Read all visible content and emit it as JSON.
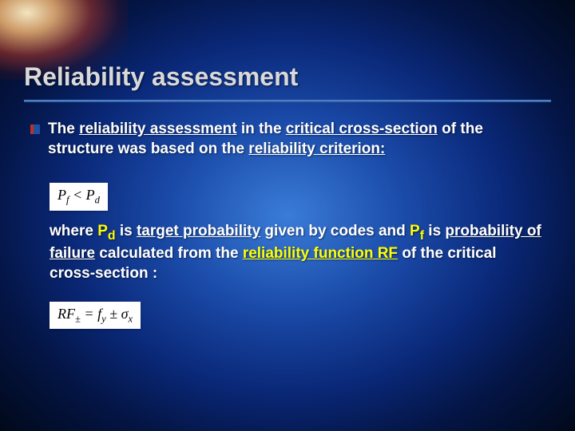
{
  "title": "Reliability assessment",
  "para1": {
    "pre": "The ",
    "u1": "reliability assessment",
    "mid1": " in the ",
    "u2": "critical cross-section",
    "mid2": " of the structure was based on the ",
    "u3": "reliability criterion:",
    "post": ""
  },
  "formula1": {
    "pf": "P",
    "pf_sub": "f",
    "lt": " < ",
    "pd": "P",
    "pd_sub": "d"
  },
  "para2": {
    "t1": "where ",
    "y1": "P",
    "y1s": "d",
    "t2": " is ",
    "u1": "target probability",
    "t3": " given by codes and ",
    "y2": "P",
    "y2s": "f",
    "t4": " is ",
    "u2": "probability of failure",
    "t5": " calculated from the ",
    "y3": "reliability function RF",
    "t6": " of the critical cross-section :"
  },
  "formula2": {
    "rf": "RF",
    "rf_sub": "±",
    "eq": " = ",
    "fy": "f",
    "fy_sub": "y",
    "pm": " ± ",
    "sigma": "σ",
    "sigma_sub": "x"
  },
  "colors": {
    "highlight": "#ffff00",
    "title": "#d9d9d9",
    "rule": "#5a8ad0",
    "bullet_red": "#c03020",
    "bullet_blue": "#2050a0"
  }
}
